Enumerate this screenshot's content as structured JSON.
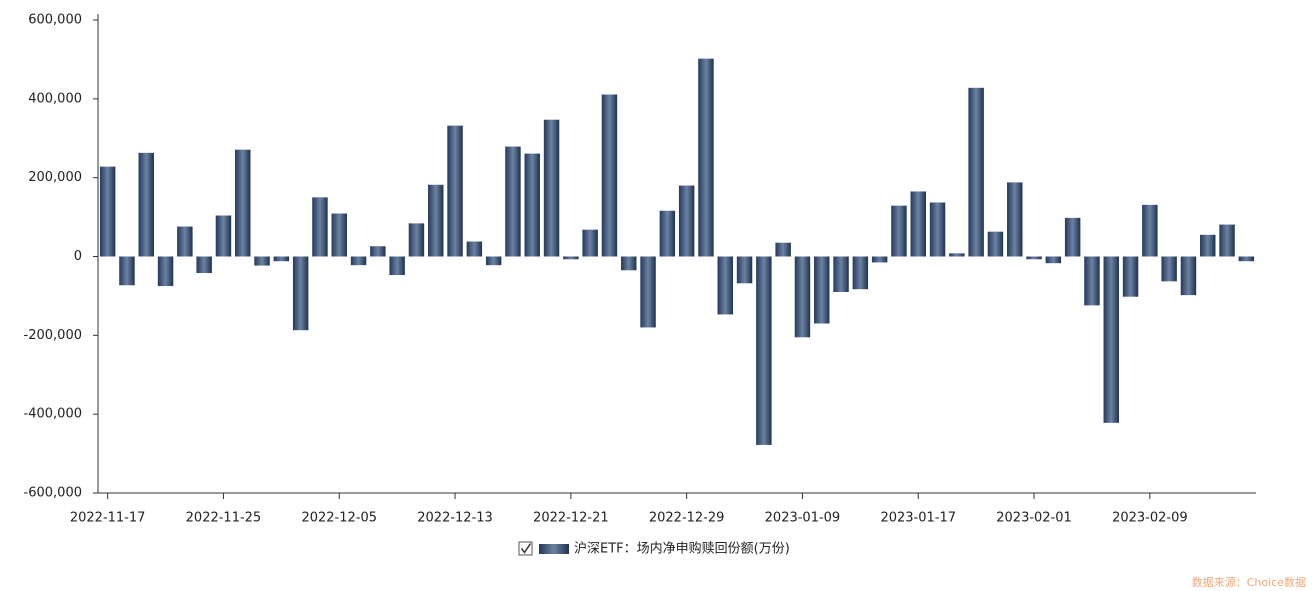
{
  "chart_data": {
    "type": "bar",
    "categories": [
      "2022-11-17",
      null,
      null,
      null,
      null,
      null,
      "2022-11-25",
      null,
      null,
      null,
      null,
      null,
      "2022-12-05",
      null,
      null,
      null,
      null,
      null,
      "2022-12-13",
      null,
      null,
      null,
      null,
      null,
      "2022-12-21",
      null,
      null,
      null,
      null,
      null,
      "2022-12-29",
      null,
      null,
      null,
      null,
      null,
      "2023-01-09",
      null,
      null,
      null,
      null,
      null,
      "2023-01-17",
      null,
      null,
      null,
      null,
      null,
      "2023-02-01",
      null,
      null,
      null,
      null,
      null,
      "2023-02-09",
      null,
      null,
      null,
      null,
      null
    ],
    "series": [
      {
        "name": "沪深ETF：场内净申购赎回份额(万份)",
        "color": "#2e4d7a",
        "values": [
          228000,
          -73000,
          263000,
          -75000,
          76000,
          -42000,
          104000,
          271000,
          -23000,
          -12000,
          -187000,
          150000,
          109000,
          -22000,
          26000,
          -47000,
          84000,
          182000,
          332000,
          38000,
          -22000,
          279000,
          261000,
          347000,
          -7000,
          68000,
          411000,
          -35000,
          -180000,
          116000,
          180000,
          502000,
          -147000,
          -68000,
          -478000,
          35000,
          -205000,
          -170000,
          -90000,
          -83000,
          -15000,
          129000,
          165000,
          137000,
          8000,
          428000,
          63000,
          188000,
          -7000,
          -17000,
          98000,
          -124000,
          -422000,
          -102000,
          131000,
          -63000,
          -98000,
          55000,
          81000,
          -12000
        ]
      }
    ],
    "ylim": [
      -600000,
      600000
    ],
    "yticks": [
      {
        "value": -600000,
        "label": "-600,000"
      },
      {
        "value": -400000,
        "label": "-400,000"
      },
      {
        "value": -200000,
        "label": "-200,000"
      },
      0,
      {
        "value": 200000,
        "label": "200,000"
      },
      {
        "value": 400000,
        "label": "400,000"
      },
      {
        "value": 600000,
        "label": "600,000"
      }
    ],
    "source": "数据来源：Choice数据"
  }
}
